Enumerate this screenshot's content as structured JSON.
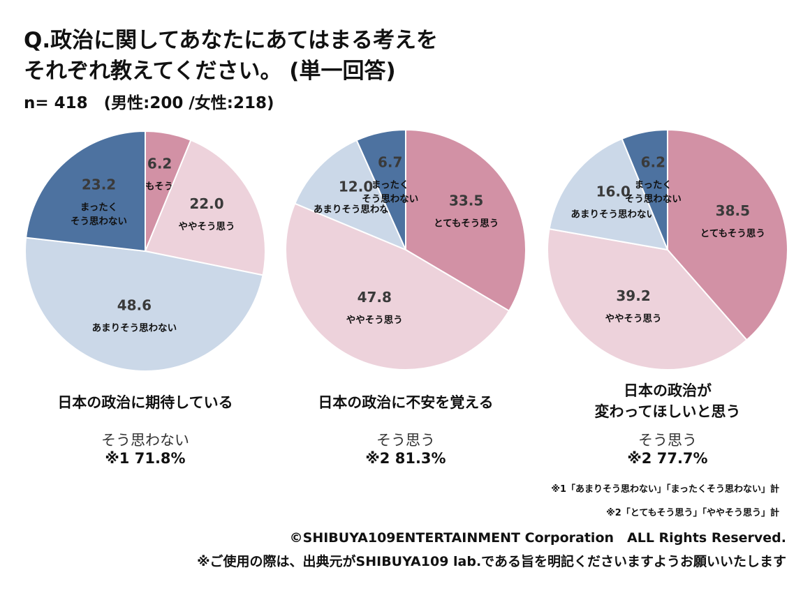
{
  "title_line1": "Q.政治に関してあなたにあてはまる考えを",
  "title_line2": "それぞれ教えてください。 (単一回答)",
  "sample": "n= 418　(男性:200 /女性:218)",
  "colors": {
    "strongly_agree": "#D291A5",
    "somewhat_agree": "#EDD2DB",
    "somewhat_disagree": "#CBD8E8",
    "strongly_disagree": "#4D72A0"
  },
  "chart_data": [
    {
      "type": "pie",
      "title": "日本の政治に期待している",
      "categories": [
        "とてもそう思う",
        "ややそう思う",
        "あまりそう思わない",
        "まったくそう思わない"
      ],
      "values": [
        6.2,
        22.0,
        48.6,
        23.2
      ],
      "summary_label": "そう思わない",
      "summary_value": "※1 71.8%"
    },
    {
      "type": "pie",
      "title": "日本の政治に不安を覚える",
      "categories": [
        "とてもそう思う",
        "ややそう思う",
        "あまりそう思わない",
        "まったくそう思わない"
      ],
      "values": [
        33.5,
        47.8,
        12.0,
        6.7
      ],
      "summary_label": "そう思う",
      "summary_value": "※2 81.3%"
    },
    {
      "type": "pie",
      "title": "日本の政治が\n変わってほしいと思う",
      "categories": [
        "とてもそう思う",
        "ややそう思う",
        "あまりそう思わない",
        "まったくそう思わない"
      ],
      "values": [
        38.5,
        39.2,
        16.0,
        6.2
      ],
      "summary_label": "そう思う",
      "summary_value": "※2 77.7%"
    }
  ],
  "notes": [
    "※1「あまりそう思わない」「まったくそう思わない」計",
    "※2「とてもそう思う」「ややそう思う」計"
  ],
  "copyright": "©SHIBUYA109ENTERTAINMENT Corporation　ALL Rights Reserved.",
  "usage": "※ご使用の際は、出典元がSHIBUYA109 lab.である旨を明記くださいますようお願いいたします"
}
